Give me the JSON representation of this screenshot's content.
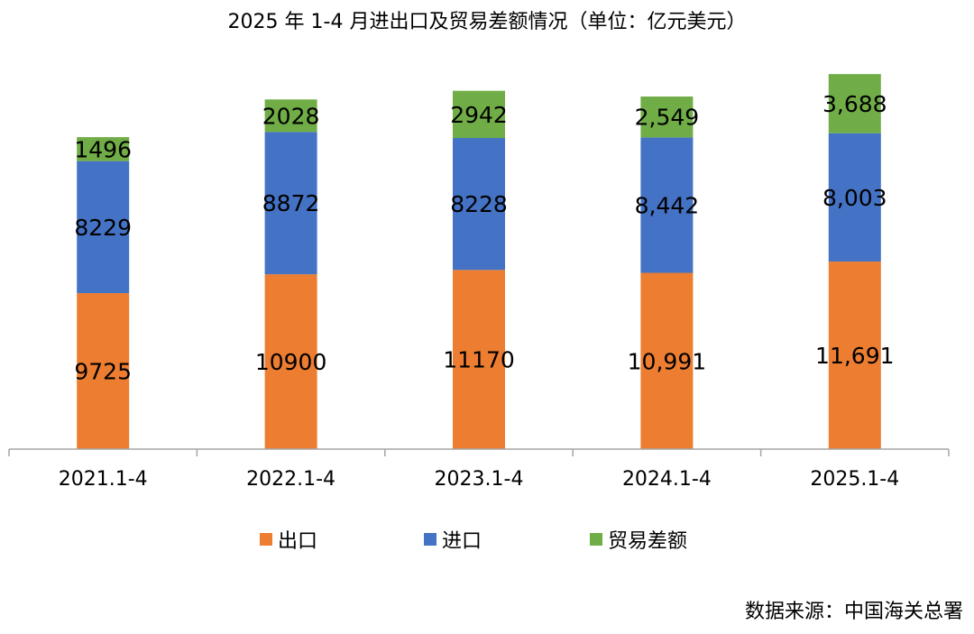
{
  "title": "2025 年 1-4 月进出口及贸易差额情况（单位：亿元美元）",
  "source": "数据来源：中国海关总署",
  "colors": {
    "export": "#ED7D31",
    "import": "#4472C4",
    "balance": "#70AD47"
  },
  "chart_data": {
    "type": "bar",
    "stacked": true,
    "title": "2025 年 1-4 月进出口及贸易差额情况（单位：亿元美元）",
    "categories": [
      "2021.1-4",
      "2022.1-4",
      "2023.1-4",
      "2024.1-4",
      "2025.1-4"
    ],
    "series": [
      {
        "name": "出口",
        "color": "#ED7D31",
        "values": [
          9725,
          10900,
          11170,
          10991,
          11691
        ],
        "labels": [
          "9725",
          "10900",
          "11170",
          "10,991",
          "11,691"
        ]
      },
      {
        "name": "进口",
        "color": "#4472C4",
        "values": [
          8229,
          8872,
          8228,
          8442,
          8003
        ],
        "labels": [
          "8229",
          "8872",
          "8228",
          "8,442",
          "8,003"
        ]
      },
      {
        "name": "贸易差额",
        "color": "#70AD47",
        "values": [
          1496,
          2028,
          2942,
          2549,
          3688
        ],
        "labels": [
          "1496",
          "2028",
          "2942",
          "2,549",
          "3,688"
        ]
      }
    ],
    "xlabel": "",
    "ylabel": "",
    "ylim": [
      0,
      28000
    ],
    "grid": false,
    "legend": "bottom"
  }
}
